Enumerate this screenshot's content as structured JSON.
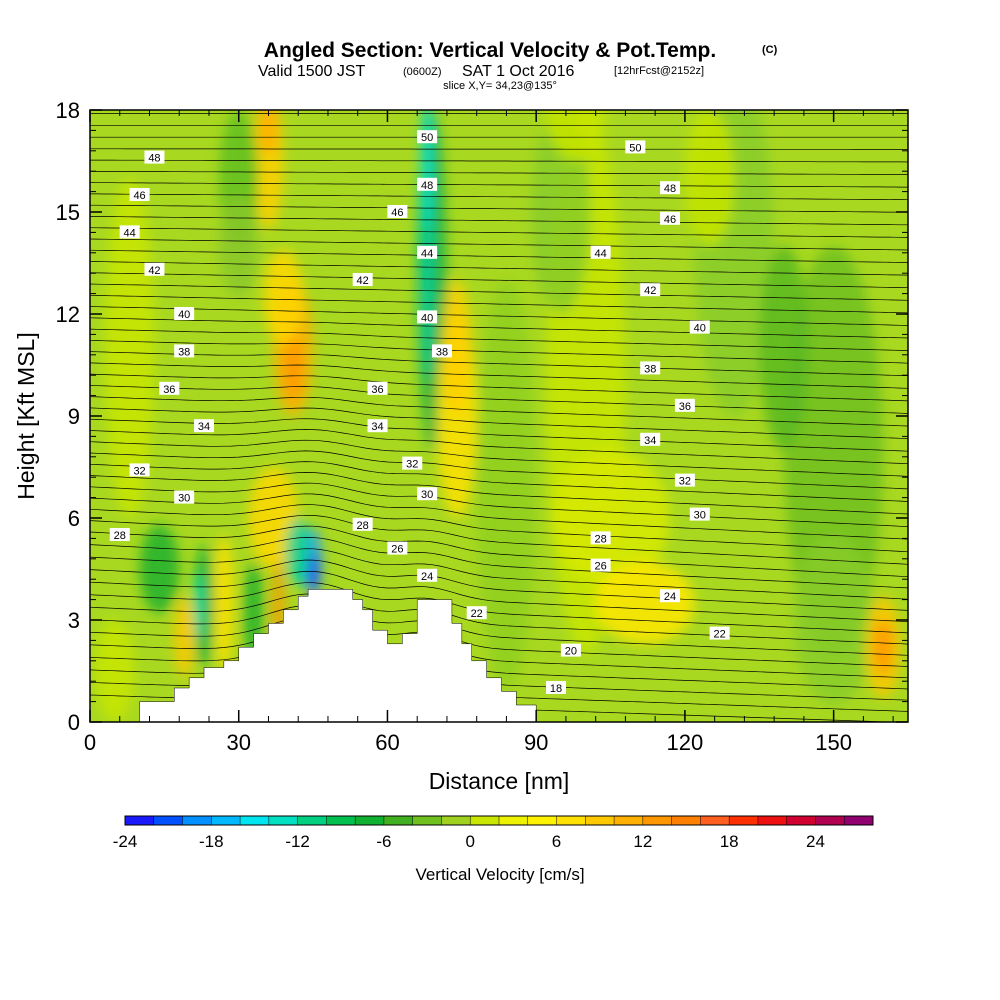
{
  "header": {
    "title_main": "Angled Section: Vertical Velocity & Pot.Temp.",
    "title_mark": "(C)",
    "subtitle_valid": "Valid 1500 JST",
    "subtitle_utc": "(0600Z)",
    "subtitle_date": "SAT 1 Oct 2016",
    "subtitle_fcst": "[12hrFcst@2152z]",
    "slice": "slice X,Y= 34,23@135°"
  },
  "chart_data": {
    "type": "heatmap",
    "xlabel": "Distance [nm]",
    "ylabel": "Height [Kft MSL]",
    "xlim": [
      0,
      165
    ],
    "ylim": [
      0,
      18
    ],
    "x_ticks": [
      0,
      30,
      60,
      90,
      120,
      150
    ],
    "y_ticks": [
      0,
      3,
      6,
      9,
      12,
      15,
      18
    ],
    "colorbar": {
      "title": "Vertical Velocity [cm/s]",
      "range": [
        -24,
        28
      ],
      "step": 2,
      "tick_labels": [
        -24,
        -18,
        -12,
        -6,
        0,
        6,
        12,
        18,
        24
      ],
      "colors": [
        "#1a1aff",
        "#0050ff",
        "#0090ff",
        "#00b8ff",
        "#00e6f0",
        "#00e0c0",
        "#00d080",
        "#00c050",
        "#10b030",
        "#40b020",
        "#70c020",
        "#a0d020",
        "#c8e600",
        "#eef200",
        "#fff200",
        "#ffe000",
        "#ffc800",
        "#ffb000",
        "#ff9800",
        "#ff8000",
        "#ff6020",
        "#ff3000",
        "#ee1010",
        "#d00030",
        "#b00050",
        "#900070"
      ]
    },
    "terrain_profile": {
      "x": [
        0,
        10,
        17,
        20,
        23,
        27,
        30,
        33,
        36,
        39,
        42,
        44,
        47,
        50,
        53,
        55,
        57,
        60,
        63,
        66,
        69,
        73,
        75,
        77,
        80,
        83,
        86,
        90
      ],
      "height": [
        0,
        0.6,
        1.0,
        1.3,
        1.6,
        1.8,
        2.2,
        2.6,
        2.9,
        3.3,
        3.7,
        3.9,
        3.9,
        3.9,
        3.6,
        3.3,
        2.7,
        2.3,
        2.6,
        3.6,
        3.6,
        2.9,
        2.3,
        1.8,
        1.3,
        0.9,
        0.5,
        0
      ]
    },
    "theta_contour_labels": [
      {
        "value": 50,
        "x": 68,
        "y": 17.2
      },
      {
        "value": 50,
        "x": 110,
        "y": 16.9
      },
      {
        "value": 48,
        "x": 13,
        "y": 16.6
      },
      {
        "value": 48,
        "x": 68,
        "y": 15.8
      },
      {
        "value": 48,
        "x": 117,
        "y": 15.7
      },
      {
        "value": 46,
        "x": 10,
        "y": 15.5
      },
      {
        "value": 46,
        "x": 62,
        "y": 15.0
      },
      {
        "value": 46,
        "x": 117,
        "y": 14.8
      },
      {
        "value": 44,
        "x": 8,
        "y": 14.4
      },
      {
        "value": 44,
        "x": 68,
        "y": 13.8
      },
      {
        "value": 44,
        "x": 103,
        "y": 13.8
      },
      {
        "value": 42,
        "x": 13,
        "y": 13.3
      },
      {
        "value": 42,
        "x": 55,
        "y": 13.0
      },
      {
        "value": 42,
        "x": 113,
        "y": 12.7
      },
      {
        "value": 40,
        "x": 19,
        "y": 12.0
      },
      {
        "value": 40,
        "x": 68,
        "y": 11.9
      },
      {
        "value": 40,
        "x": 123,
        "y": 11.6
      },
      {
        "value": 38,
        "x": 19,
        "y": 10.9
      },
      {
        "value": 38,
        "x": 71,
        "y": 10.9
      },
      {
        "value": 38,
        "x": 113,
        "y": 10.4
      },
      {
        "value": 36,
        "x": 16,
        "y": 9.8
      },
      {
        "value": 36,
        "x": 58,
        "y": 9.8
      },
      {
        "value": 36,
        "x": 120,
        "y": 9.3
      },
      {
        "value": 34,
        "x": 23,
        "y": 8.7
      },
      {
        "value": 34,
        "x": 58,
        "y": 8.7
      },
      {
        "value": 34,
        "x": 113,
        "y": 8.3
      },
      {
        "value": 32,
        "x": 10,
        "y": 7.4
      },
      {
        "value": 32,
        "x": 65,
        "y": 7.6
      },
      {
        "value": 32,
        "x": 120,
        "y": 7.1
      },
      {
        "value": 30,
        "x": 19,
        "y": 6.6
      },
      {
        "value": 30,
        "x": 68,
        "y": 6.7
      },
      {
        "value": 30,
        "x": 123,
        "y": 6.1
      },
      {
        "value": 28,
        "x": 6,
        "y": 5.5
      },
      {
        "value": 28,
        "x": 55,
        "y": 5.8
      },
      {
        "value": 28,
        "x": 103,
        "y": 5.4
      },
      {
        "value": 26,
        "x": 62,
        "y": 5.1
      },
      {
        "value": 26,
        "x": 103,
        "y": 4.6
      },
      {
        "value": 24,
        "x": 68,
        "y": 4.3
      },
      {
        "value": 24,
        "x": 117,
        "y": 3.7
      },
      {
        "value": 22,
        "x": 78,
        "y": 3.2
      },
      {
        "value": 22,
        "x": 127,
        "y": 2.6
      },
      {
        "value": 20,
        "x": 97,
        "y": 2.1
      },
      {
        "value": 18,
        "x": 94,
        "y": 1.0
      }
    ]
  }
}
